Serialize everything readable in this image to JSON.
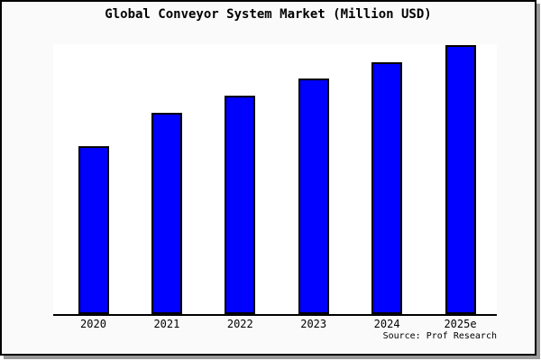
{
  "window": {
    "background_color": "#fafafa",
    "frame_border_color": "#000000",
    "frame_shadow_color": "#999999"
  },
  "chart_data": {
    "type": "bar",
    "title": "Global Conveyor System Market (Million USD)",
    "categories": [
      "2020",
      "2021",
      "2022",
      "2023",
      "2024",
      "2025e"
    ],
    "values": [
      188,
      225,
      244,
      263,
      281,
      300
    ],
    "values_note": "No y-axis, gridlines or data labels are shown in the image; values are measured relative bar heights in pixels (baseline y=350px).",
    "xlabel": "",
    "ylabel": "",
    "legend": "none",
    "grid": false,
    "plot_background": "#ffffff",
    "axis_color": "#000000",
    "bar_color": "#0000ff",
    "bar_border_color": "#000000",
    "source_label": "Source: Prof Research"
  }
}
